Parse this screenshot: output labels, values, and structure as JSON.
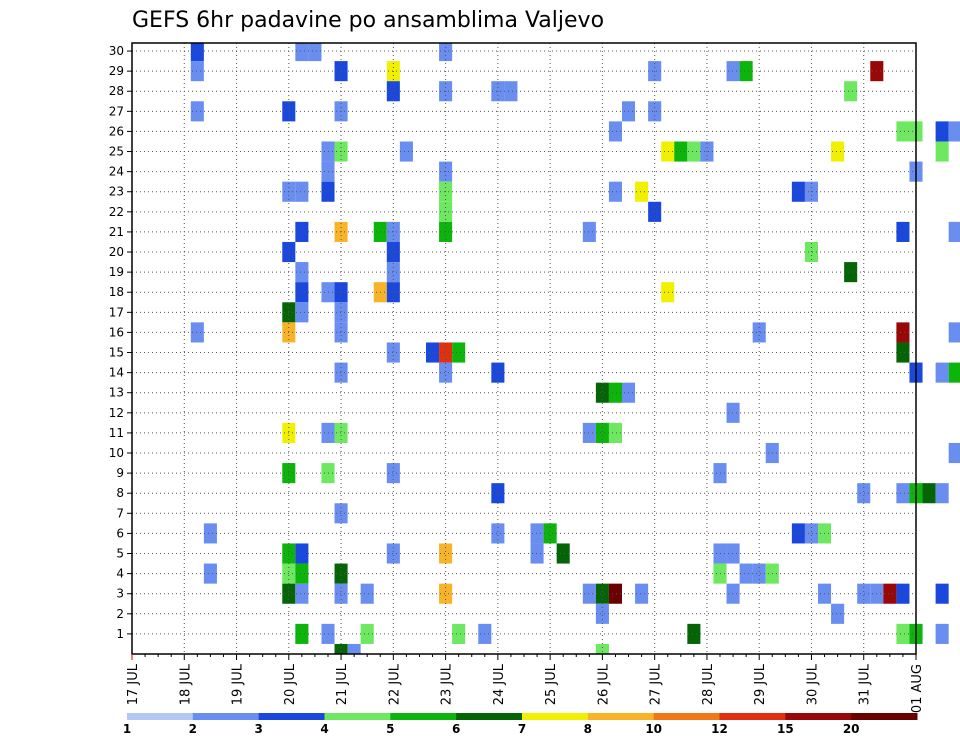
{
  "chart_data": {
    "type": "heatmap",
    "title": "GEFS 6hr padavine po ansamblima Valjevo",
    "y_ticks": [
      "1",
      "2",
      "3",
      "4",
      "5",
      "6",
      "7",
      "8",
      "9",
      "10",
      "11",
      "12",
      "13",
      "14",
      "15",
      "16",
      "17",
      "18",
      "19",
      "20",
      "21",
      "22",
      "23",
      "24",
      "25",
      "26",
      "27",
      "28",
      "29",
      "30"
    ],
    "x_ticks": [
      "17 JUL",
      "18 JUL",
      "19 JUL",
      "20 JUL",
      "21 JUL",
      "22 JUL",
      "23 JUL",
      "24 JUL",
      "25 JUL",
      "26 JUL",
      "27 JUL",
      "28 JUL",
      "29 JUL",
      "30 JUL",
      "31 JUL",
      "01 AUG"
    ],
    "x_range_days": [
      0,
      15
    ],
    "y_range": [
      0,
      30
    ],
    "grid": true,
    "colorbar": {
      "labels": [
        "1",
        "2",
        "3",
        "4",
        "5",
        "6",
        "7",
        "8",
        "10",
        "12",
        "15",
        "20"
      ],
      "colors": [
        "#b4c6f4",
        "#6a8ef0",
        "#1a48dc",
        "#6ee860",
        "#0cb40c",
        "#056405",
        "#f0f000",
        "#f8b428",
        "#f07818",
        "#e03010",
        "#980808",
        "#6a0000"
      ]
    },
    "points": [
      [
        1.25,
        30,
        2
      ],
      [
        1.25,
        29,
        1
      ],
      [
        1.25,
        27,
        1
      ],
      [
        1.25,
        16,
        1
      ],
      [
        1.5,
        6,
        1
      ],
      [
        1.5,
        4,
        1
      ],
      [
        3.0,
        27,
        2
      ],
      [
        3.0,
        23,
        1
      ],
      [
        3.0,
        20,
        2
      ],
      [
        3.0,
        17,
        5
      ],
      [
        3.0,
        16,
        7
      ],
      [
        3.0,
        11,
        6
      ],
      [
        3.0,
        9,
        4
      ],
      [
        3.0,
        5,
        4
      ],
      [
        3.0,
        4,
        3
      ],
      [
        3.0,
        3,
        5
      ],
      [
        3.25,
        30,
        1
      ],
      [
        3.25,
        23,
        1
      ],
      [
        3.25,
        21,
        2
      ],
      [
        3.25,
        19,
        1
      ],
      [
        3.25,
        18,
        2
      ],
      [
        3.25,
        17,
        1
      ],
      [
        3.25,
        5,
        2
      ],
      [
        3.25,
        4,
        4
      ],
      [
        3.25,
        3,
        1
      ],
      [
        3.25,
        1,
        4
      ],
      [
        3.5,
        30,
        1
      ],
      [
        3.75,
        25,
        1
      ],
      [
        3.75,
        24,
        1
      ],
      [
        3.75,
        23,
        2
      ],
      [
        3.75,
        18,
        1
      ],
      [
        3.75,
        11,
        1
      ],
      [
        3.75,
        9,
        3
      ],
      [
        3.75,
        1,
        1
      ],
      [
        4.0,
        29,
        2
      ],
      [
        4.0,
        27,
        1
      ],
      [
        4.0,
        25,
        3
      ],
      [
        4.0,
        21,
        7
      ],
      [
        4.0,
        18,
        2
      ],
      [
        4.0,
        17,
        1
      ],
      [
        4.0,
        16,
        1
      ],
      [
        4.0,
        14,
        1
      ],
      [
        4.0,
        11,
        3
      ],
      [
        4.0,
        7,
        1
      ],
      [
        4.0,
        4,
        5
      ],
      [
        4.0,
        3,
        1
      ],
      [
        4.0,
        0,
        5
      ],
      [
        4.25,
        0,
        1
      ],
      [
        4.5,
        3,
        1
      ],
      [
        4.5,
        1,
        3
      ],
      [
        4.75,
        21,
        4
      ],
      [
        4.75,
        18,
        7
      ],
      [
        5.0,
        29,
        6
      ],
      [
        5.0,
        28,
        2
      ],
      [
        5.0,
        21,
        1
      ],
      [
        5.0,
        20,
        2
      ],
      [
        5.0,
        19,
        1
      ],
      [
        5.0,
        18,
        2
      ],
      [
        5.0,
        15,
        1
      ],
      [
        5.0,
        9,
        1
      ],
      [
        5.0,
        5,
        1
      ],
      [
        5.25,
        25,
        1
      ],
      [
        5.75,
        15,
        2
      ],
      [
        6.0,
        30,
        1
      ],
      [
        6.0,
        28,
        1
      ],
      [
        6.0,
        24,
        1
      ],
      [
        6.0,
        23,
        3
      ],
      [
        6.0,
        22,
        3
      ],
      [
        6.0,
        21,
        4
      ],
      [
        6.0,
        15,
        9
      ],
      [
        6.0,
        14,
        1
      ],
      [
        6.0,
        5,
        7
      ],
      [
        6.0,
        3,
        7
      ],
      [
        6.25,
        15,
        4
      ],
      [
        6.25,
        1,
        3
      ],
      [
        6.75,
        1,
        1
      ],
      [
        7.0,
        28,
        1
      ],
      [
        7.0,
        14,
        2
      ],
      [
        7.0,
        8,
        2
      ],
      [
        7.0,
        6,
        1
      ],
      [
        7.25,
        28,
        1
      ],
      [
        7.75,
        6,
        1
      ],
      [
        7.75,
        5,
        1
      ],
      [
        8.0,
        6,
        4
      ],
      [
        8.25,
        5,
        5
      ],
      [
        8.75,
        21,
        1
      ],
      [
        8.75,
        11,
        1
      ],
      [
        8.75,
        3,
        1
      ],
      [
        9.0,
        13,
        5
      ],
      [
        9.0,
        11,
        4
      ],
      [
        9.0,
        3,
        5
      ],
      [
        9.0,
        2,
        1
      ],
      [
        9.0,
        0,
        3
      ],
      [
        9.25,
        26,
        1
      ],
      [
        9.25,
        23,
        1
      ],
      [
        9.25,
        13,
        4
      ],
      [
        9.25,
        11,
        3
      ],
      [
        9.25,
        3,
        11
      ],
      [
        9.5,
        27,
        1
      ],
      [
        9.5,
        13,
        1
      ],
      [
        9.75,
        23,
        6
      ],
      [
        9.75,
        3,
        1
      ],
      [
        10.0,
        29,
        1
      ],
      [
        10.0,
        27,
        1
      ],
      [
        10.0,
        22,
        2
      ],
      [
        10.25,
        25,
        6
      ],
      [
        10.25,
        18,
        6
      ],
      [
        10.5,
        25,
        4
      ],
      [
        10.75,
        25,
        3
      ],
      [
        10.75,
        1,
        5
      ],
      [
        11.0,
        25,
        1
      ],
      [
        11.25,
        9,
        1
      ],
      [
        11.25,
        5,
        1
      ],
      [
        11.25,
        4,
        3
      ],
      [
        11.5,
        29,
        1
      ],
      [
        11.5,
        12,
        1
      ],
      [
        11.5,
        5,
        1
      ],
      [
        11.5,
        3,
        1
      ],
      [
        11.75,
        29,
        4
      ],
      [
        11.75,
        4,
        1
      ],
      [
        12.0,
        4,
        1
      ],
      [
        12.25,
        4,
        3
      ],
      [
        12.0,
        16,
        1
      ],
      [
        12.25,
        10,
        1
      ],
      [
        12.75,
        23,
        2
      ],
      [
        12.75,
        6,
        2
      ],
      [
        13.0,
        23,
        1
      ],
      [
        13.0,
        6,
        1
      ],
      [
        13.0,
        20,
        3
      ],
      [
        13.25,
        6,
        3
      ],
      [
        13.25,
        3,
        1
      ],
      [
        13.5,
        2,
        1
      ],
      [
        13.5,
        25,
        6
      ],
      [
        13.75,
        28,
        3
      ],
      [
        13.75,
        19,
        5
      ],
      [
        14.0,
        8,
        1
      ],
      [
        14.0,
        3,
        1
      ],
      [
        14.25,
        3,
        1
      ],
      [
        14.25,
        29,
        10
      ],
      [
        14.5,
        3,
        10
      ],
      [
        14.75,
        26,
        3
      ],
      [
        14.75,
        21,
        2
      ],
      [
        14.75,
        16,
        10
      ],
      [
        14.75,
        15,
        5
      ],
      [
        14.75,
        8,
        1
      ],
      [
        14.75,
        3,
        2
      ],
      [
        14.75,
        1,
        3
      ],
      [
        15.0,
        24,
        1
      ],
      [
        15.0,
        14,
        2
      ],
      [
        15.0,
        26,
        3
      ],
      [
        15.0,
        1,
        4
      ],
      [
        15.0,
        8,
        4
      ],
      [
        15.25,
        8,
        5
      ],
      [
        15.5,
        26,
        2
      ],
      [
        15.5,
        25,
        3
      ],
      [
        15.5,
        14,
        1
      ],
      [
        15.5,
        8,
        1
      ],
      [
        15.5,
        3,
        2
      ],
      [
        15.5,
        1,
        1
      ],
      [
        15.75,
        26,
        1
      ],
      [
        15.75,
        21,
        1
      ],
      [
        15.75,
        16,
        1
      ],
      [
        15.75,
        14,
        4
      ],
      [
        15.75,
        10,
        1
      ]
    ]
  }
}
